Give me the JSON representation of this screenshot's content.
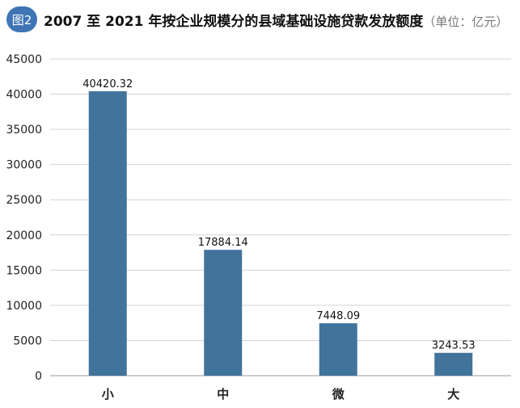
{
  "header": {
    "badge": "图2",
    "title": "2007 至 2021 年按企业规模分的县域基础设施贷款发放额度",
    "unit": "（单位：亿元）"
  },
  "colors": {
    "bar": "#41739b",
    "badge": "#3f75b5",
    "grid": "#d4d4d4"
  },
  "chart_data": {
    "type": "bar",
    "categories": [
      "小",
      "中",
      "微",
      "大"
    ],
    "values": [
      40420.32,
      17884.14,
      7448.09,
      3243.53
    ],
    "value_labels": [
      "40420.32",
      "17884.14",
      "7448.09",
      "3243.53"
    ],
    "yticks": [
      "0",
      "5000",
      "10000",
      "15000",
      "20000",
      "25000",
      "30000",
      "35000",
      "40000",
      "45000"
    ],
    "ylim": [
      0,
      45000
    ],
    "grid": true,
    "legend": "none"
  }
}
